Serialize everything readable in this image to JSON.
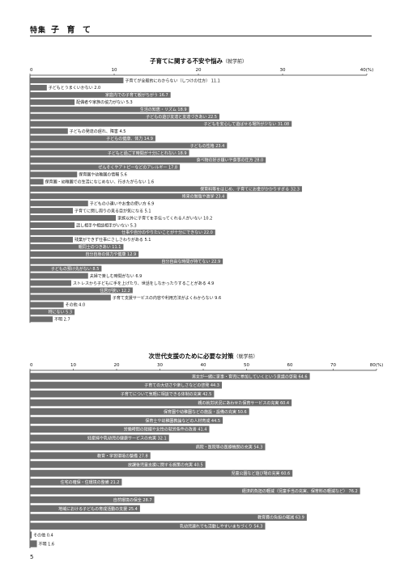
{
  "header": {
    "section": "特集",
    "title": "子 育 て"
  },
  "page_number": "5",
  "chart_data": [
    {
      "type": "bar",
      "orientation": "horizontal",
      "title": "子育てに関する不安や悩み",
      "subtitle": "（就学前）",
      "unit": "(%)",
      "xlim": [
        0,
        40
      ],
      "ticks": [
        "0",
        "10",
        "20",
        "30",
        "40(%)"
      ],
      "bars": [
        {
          "label": "子育てが全般的にわからない（しつけの仕方）",
          "value": 11.1,
          "value_text": "11.1"
        },
        {
          "label": "子どもとうまくいかない",
          "value": 2.0,
          "value_text": "2.0"
        },
        {
          "label": "家庭内での子育て観がちがう",
          "value": 16.7,
          "value_text": "16.7"
        },
        {
          "label": "配偶者や家族の協力がない",
          "value": 5.3,
          "value_text": "5.3"
        },
        {
          "label": "生活の知恵・リズム",
          "value": 18.9,
          "value_text": "18.9"
        },
        {
          "label": "子どもの遊び友達と友達づきあい",
          "value": 22.5,
          "value_text": "22.5"
        },
        {
          "label": "子どもを安心して遊ばせる場所が少ない",
          "value": 31.08,
          "value_text": "31.08"
        },
        {
          "label": "子どもの発達の遅れ、障害",
          "value": 4.5,
          "value_text": "4.5"
        },
        {
          "label": "子どもの健康、体力",
          "value": 14.9,
          "value_text": "14.9"
        },
        {
          "label": "子どもの性格",
          "value": 23.4,
          "value_text": "23.4"
        },
        {
          "label": "子どもと過ごす時間が十分にとれない",
          "value": 18.9,
          "value_text": "18.9"
        },
        {
          "label": "食べ物の好き嫌いや食事の仕方",
          "value": 28.0,
          "value_text": "28.0"
        },
        {
          "label": "ぜんそくやアトピーなどのアレルギー",
          "value": 17.8,
          "value_text": "17.8"
        },
        {
          "label": "保育園や幼稚園の情報",
          "value": 5.6,
          "value_text": "5.6"
        },
        {
          "label": "保育園・幼稚園での生活になじめない、行きたがらない",
          "value": 1.6,
          "value_text": "1.6"
        },
        {
          "label": "保育料等をはじめ、子育てにお金がかかりすぎる",
          "value": 32.3,
          "value_text": "32.3"
        },
        {
          "label": "将来の勉強や進学",
          "value": 23.4,
          "value_text": "23.4"
        },
        {
          "label": "子どもの小遣いやお金の使い方",
          "value": 6.9,
          "value_text": "6.9"
        },
        {
          "label": "子育てに関し周りの見る目が気になる",
          "value": 5.1,
          "value_text": "5.1"
        },
        {
          "label": "家族以外に子育てを手伝ってくれる人がいない",
          "value": 10.2,
          "value_text": "10.2"
        },
        {
          "label": "話し相手や相談相手がいない",
          "value": 5.3,
          "value_text": "5.3"
        },
        {
          "label": "仕事や自分のやりたいことが十分にできない",
          "value": 22.0,
          "value_text": "22.0"
        },
        {
          "label": "残業ができず仕事にさしさわりがある",
          "value": 5.1,
          "value_text": "5.1"
        },
        {
          "label": "親同士のつきあい",
          "value": 11.1,
          "value_text": "11.1"
        },
        {
          "label": "自分自身の体力や健康",
          "value": 12.9,
          "value_text": "12.9"
        },
        {
          "label": "自分自由な時間が持てない",
          "value": 22.9,
          "value_text": "22.9"
        },
        {
          "label": "子どもの預け先がない",
          "value": 8.5,
          "value_text": "8.5"
        },
        {
          "label": "夫婦で楽しむ時間がない",
          "value": 6.9,
          "value_text": "6.9"
        },
        {
          "label": "ストレスから子どもに手を上げたり、世話をしなかったりすることがある",
          "value": 4.9,
          "value_text": "4.9"
        },
        {
          "label": "住居が狭い",
          "value": 12.2,
          "value_text": "12.2"
        },
        {
          "label": "子育て支援サービスの内容や利用方法がよくわからない",
          "value": 9.6,
          "value_text": "9.6"
        },
        {
          "label": "その他",
          "value": 4.0,
          "value_text": "4.0"
        },
        {
          "label": "特にない",
          "value": 5.3,
          "value_text": "5.3"
        },
        {
          "label": "不明",
          "value": 2.7,
          "value_text": "2.7"
        }
      ]
    },
    {
      "type": "bar",
      "orientation": "horizontal",
      "title": "次世代支援のために必要な対策",
      "subtitle": "（就学前）",
      "unit": "(%)",
      "xlim": [
        0,
        80
      ],
      "ticks": [
        "0",
        "10",
        "20",
        "30",
        "40",
        "50",
        "60",
        "70",
        "80(%)"
      ],
      "bars": [
        {
          "label": "男女が一緒に家事・育児に参加していくという意識の啓発",
          "value": 64.6,
          "value_text": "64.6"
        },
        {
          "label": "子育ての大切さや楽しさなどの啓発",
          "value": 44.3,
          "value_text": "44.3"
        },
        {
          "label": "子育てについて気軽に相談できる体制の充実",
          "value": 42.5,
          "value_text": "42.5"
        },
        {
          "label": "親の就労状況にあわせた保育サービスの充実",
          "value": 60.4,
          "value_text": "60.4"
        },
        {
          "label": "保育園や幼稚園などの施設・設備の充実",
          "value": 50.6,
          "value_text": "50.6"
        },
        {
          "label": "保育士や幼稚園教論などの人材育成",
          "value": 44.5,
          "value_text": "44.5"
        },
        {
          "label": "労働時間の短縮や女性の就労条件の改善",
          "value": 41.4,
          "value_text": "41.4"
        },
        {
          "label": "妊産婦や乳幼児の健康サービスの充実",
          "value": 32.1,
          "value_text": "32.1"
        },
        {
          "label": "病院・医院等の医療機関の充実",
          "value": 54.3,
          "value_text": "54.3"
        },
        {
          "label": "教育・学習環境の整備",
          "value": 27.8,
          "value_text": "27.8"
        },
        {
          "label": "放課後児童支援に関する施策の充実",
          "value": 40.5,
          "value_text": "40.5"
        },
        {
          "label": "児童公園など遊び場の充実",
          "value": 60.6,
          "value_text": "60.6"
        },
        {
          "label": "住宅の確保・住環境の整備",
          "value": 21.2,
          "value_text": "21.2"
        },
        {
          "label": "経済的負担の軽減（児童手当の充実、保育料の軽減など）",
          "value": 76.2,
          "value_text": "76.2"
        },
        {
          "label": "自然環境の保全",
          "value": 28.7,
          "value_text": "28.7"
        },
        {
          "label": "地域における子どもの育成活動の支援",
          "value": 25.4,
          "value_text": "25.4"
        },
        {
          "label": "教育費の負担の軽減",
          "value": 63.9,
          "value_text": "63.9"
        },
        {
          "label": "乳幼児連れでも活動しやすいまちづくり",
          "value": 54.3,
          "value_text": "54.3"
        },
        {
          "label": "その他",
          "value": 0.4,
          "value_text": "0.4"
        },
        {
          "label": "不明",
          "value": 1.6,
          "value_text": "1.6"
        }
      ]
    }
  ],
  "colors": {
    "bar": "#6d6d6d",
    "bar_text": "#ffffff",
    "text": "#111111"
  }
}
